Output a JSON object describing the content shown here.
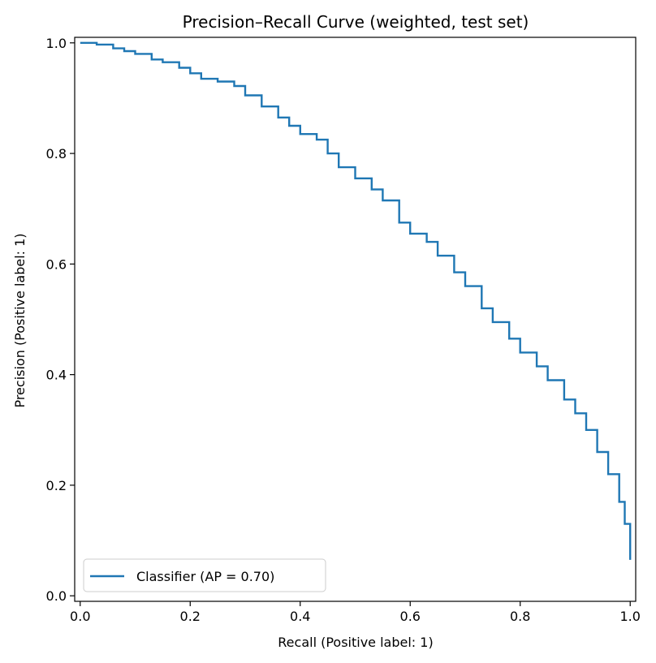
{
  "chart_data": {
    "type": "line",
    "title": "Precision–Recall Curve (weighted, test set)",
    "xlabel": "Recall (Positive label: 1)",
    "ylabel": "Precision (Positive label: 1)",
    "xlim": [
      -0.01,
      1.01
    ],
    "ylim": [
      -0.01,
      1.01
    ],
    "xticks": [
      "0.0",
      "0.2",
      "0.4",
      "0.6",
      "0.8",
      "1.0"
    ],
    "yticks": [
      "0.0",
      "0.2",
      "0.4",
      "0.6",
      "0.8",
      "1.0"
    ],
    "grid": false,
    "legend_position": "lower-left",
    "series": [
      {
        "name": "Classifier (AP = 0.70)",
        "color": "#1f77b4",
        "drawstyle": "steps",
        "x": [
          0.0,
          0.03,
          0.06,
          0.08,
          0.1,
          0.13,
          0.15,
          0.18,
          0.2,
          0.22,
          0.25,
          0.28,
          0.3,
          0.33,
          0.36,
          0.38,
          0.4,
          0.43,
          0.45,
          0.47,
          0.5,
          0.53,
          0.55,
          0.58,
          0.6,
          0.63,
          0.65,
          0.68,
          0.7,
          0.73,
          0.75,
          0.78,
          0.8,
          0.83,
          0.85,
          0.88,
          0.9,
          0.92,
          0.94,
          0.96,
          0.98,
          0.99,
          1.0,
          1.0
        ],
        "y": [
          1.0,
          0.997,
          0.99,
          0.985,
          0.98,
          0.97,
          0.965,
          0.955,
          0.945,
          0.935,
          0.93,
          0.922,
          0.905,
          0.885,
          0.865,
          0.85,
          0.835,
          0.825,
          0.8,
          0.775,
          0.755,
          0.735,
          0.715,
          0.675,
          0.655,
          0.64,
          0.615,
          0.585,
          0.56,
          0.52,
          0.495,
          0.465,
          0.44,
          0.415,
          0.39,
          0.355,
          0.33,
          0.3,
          0.26,
          0.22,
          0.17,
          0.13,
          0.1,
          0.065
        ]
      }
    ]
  }
}
